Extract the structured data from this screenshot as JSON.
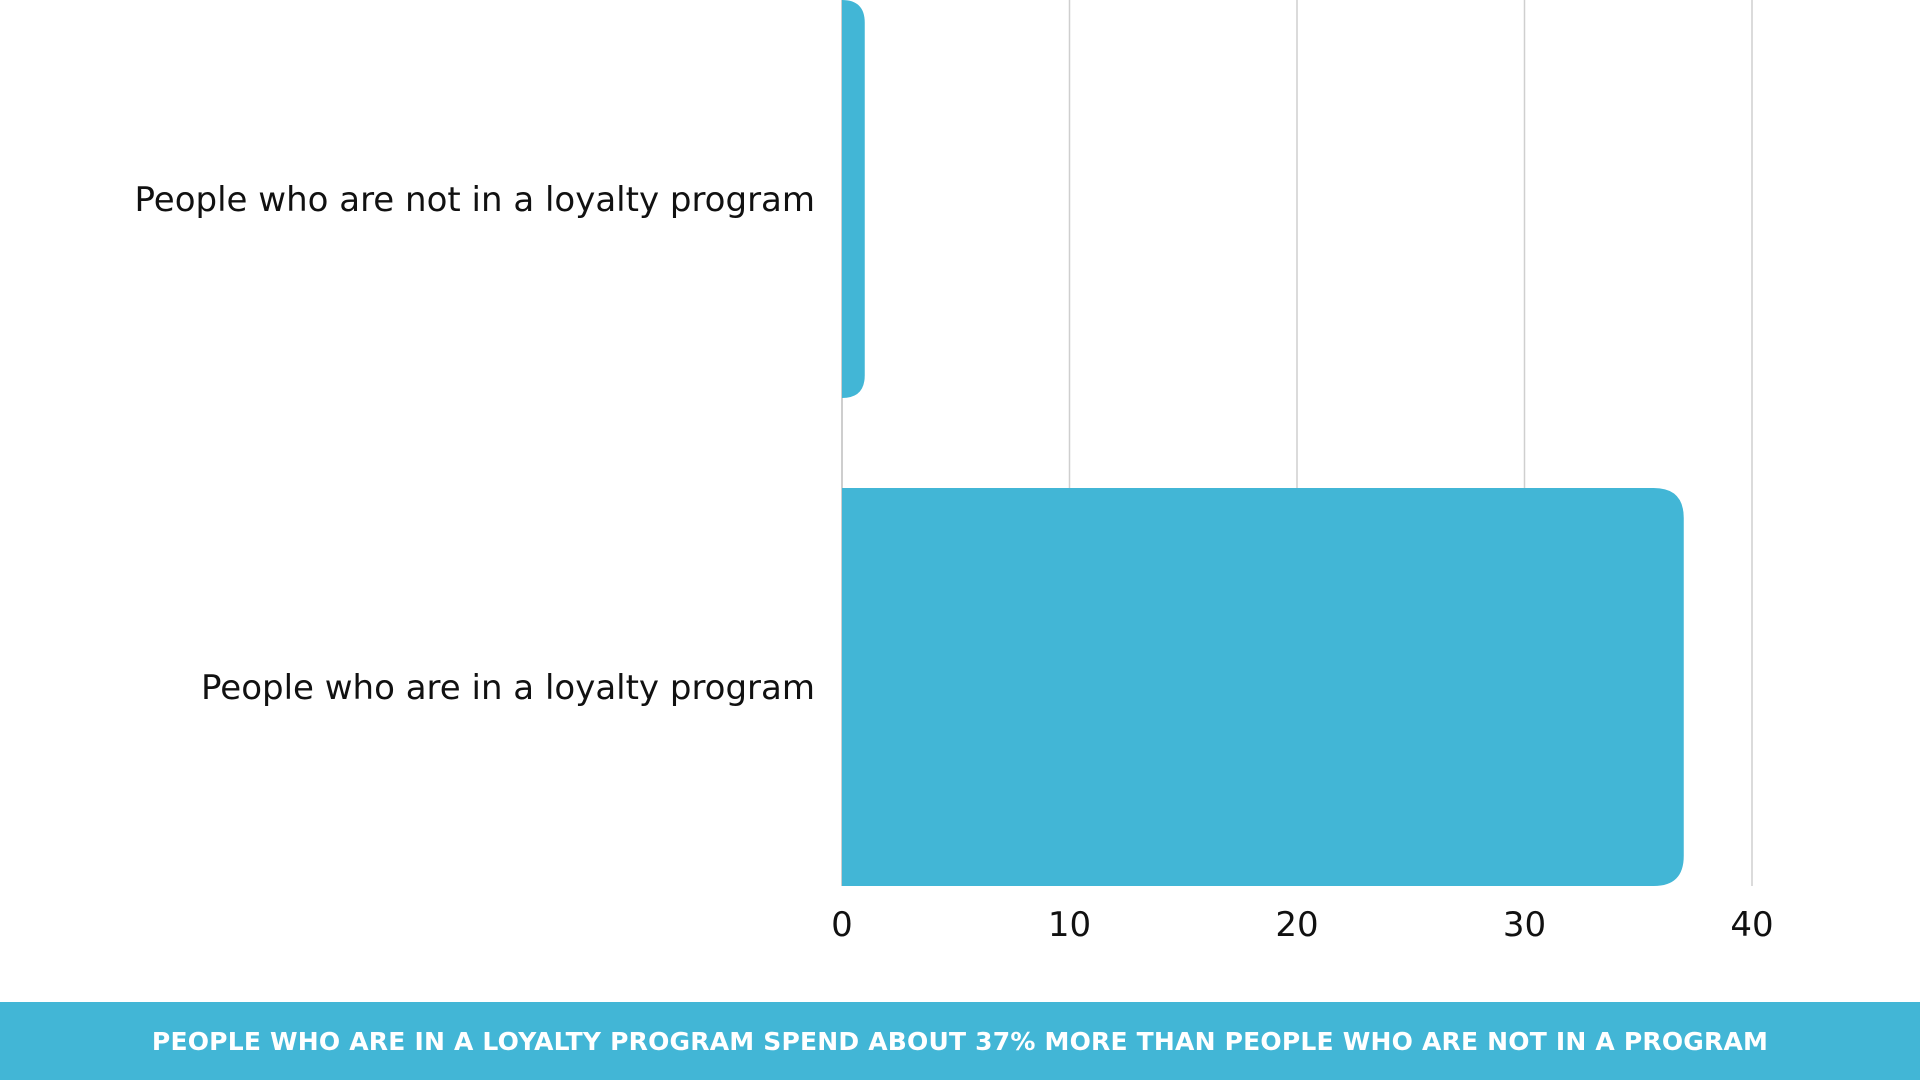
{
  "chart_data": {
    "type": "bar",
    "orientation": "horizontal",
    "categories": [
      "People who are not in a loyalty program",
      "People who are in a loyalty program"
    ],
    "values": [
      1,
      37
    ],
    "xlim": [
      0,
      40
    ],
    "xticks": [
      0,
      10,
      20,
      30,
      40
    ],
    "title": "",
    "xlabel": "",
    "ylabel": "",
    "grid": "vertical"
  },
  "colors": {
    "bar": "#42b6d6",
    "footer_bg": "#42b6d6",
    "grid": "#cfcfcf",
    "text": "#111111"
  },
  "footer": {
    "text": "PEOPLE WHO ARE IN A LOYALTY PROGRAM SPEND ABOUT 37% MORE THAN PEOPLE WHO ARE NOT IN A PROGRAM"
  }
}
